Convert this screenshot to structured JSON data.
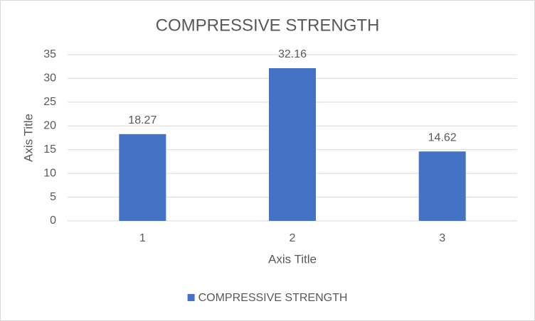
{
  "chart_data": {
    "type": "bar",
    "title": "COMPRESSIVE STRENGTH",
    "x_label": "Axis Title",
    "y_label": "Axis Title",
    "categories": [
      "1",
      "2",
      "3"
    ],
    "series": [
      {
        "name": "COMPRESSIVE STRENGTH",
        "color": "#4472c4",
        "values": [
          18.27,
          32.16,
          14.62
        ]
      }
    ],
    "ylim": [
      0,
      35
    ],
    "yticks": [
      0,
      5,
      10,
      15,
      20,
      25,
      30,
      35
    ],
    "grid": true,
    "legend": "bottom"
  }
}
